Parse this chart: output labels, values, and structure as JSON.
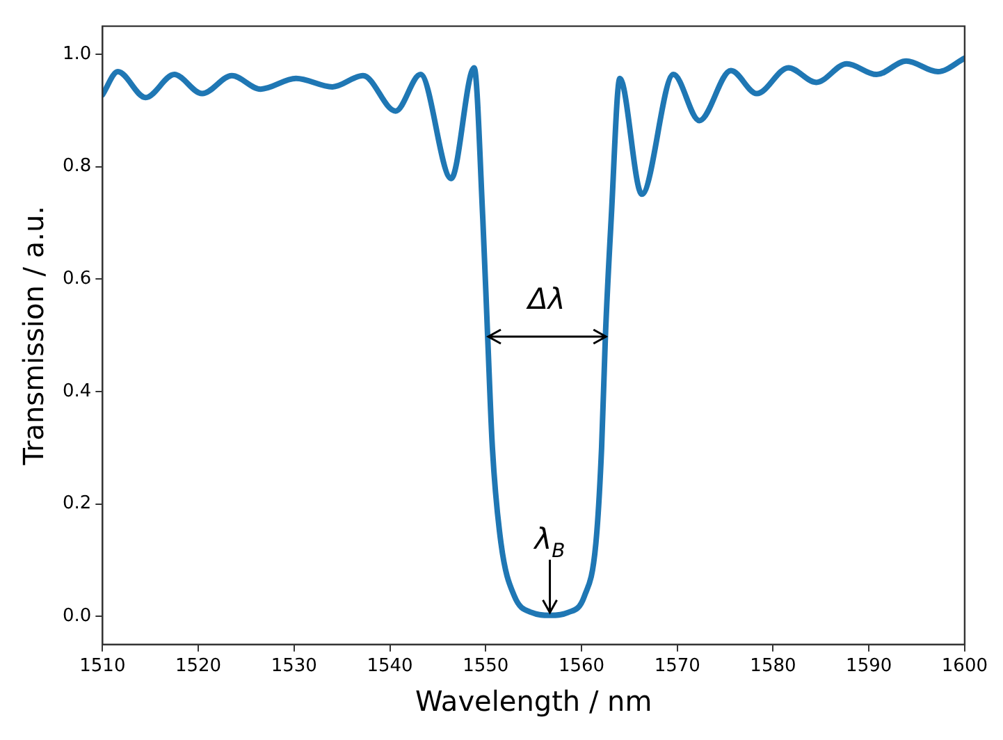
{
  "chart_data": {
    "type": "line",
    "xlabel": "Wavelength / nm",
    "ylabel": "Transmission / a.u.",
    "x": [
      1510,
      1511.6,
      1514.5,
      1517.5,
      1520.4,
      1523.5,
      1526.5,
      1530.2,
      1534,
      1537.2,
      1540.6,
      1543.2,
      1546.4,
      1548.8,
      1549.7,
      1550.2,
      1550.7,
      1551.6,
      1553,
      1554.8,
      1556.7,
      1558.6,
      1560.3,
      1561.5,
      1562.1,
      1562.5,
      1563.1,
      1564,
      1566.3,
      1569.6,
      1572.3,
      1575.6,
      1578.3,
      1581.6,
      1584.5,
      1587.7,
      1590.8,
      1593.9,
      1597.2,
      1600
    ],
    "series": [
      {
        "color": "#1f77b4",
        "values": [
          0.928,
          0.969,
          0.923,
          0.964,
          0.93,
          0.962,
          0.938,
          0.957,
          0.942,
          0.962,
          0.899,
          0.964,
          0.779,
          0.976,
          0.707,
          0.5,
          0.3,
          0.13,
          0.036,
          0.007,
          0.002,
          0.007,
          0.036,
          0.13,
          0.3,
          0.5,
          0.707,
          0.957,
          0.751,
          0.964,
          0.882,
          0.971,
          0.93,
          0.976,
          0.95,
          0.983,
          0.964,
          0.988,
          0.969,
          0.993
        ]
      }
    ],
    "xlim": [
      1510,
      1600
    ],
    "xticks": [
      1510,
      1520,
      1530,
      1540,
      1550,
      1560,
      1570,
      1580,
      1590,
      1600
    ],
    "ylim": [
      -0.05,
      1.05
    ],
    "yticks": [
      {
        "value": 0,
        "label": "0.0"
      },
      {
        "value": 0.2,
        "label": "0.2"
      },
      {
        "value": 0.4,
        "label": "0.4"
      },
      {
        "value": 0.6,
        "label": "0.6"
      },
      {
        "value": 0.8,
        "label": "0.8"
      },
      {
        "value": 1,
        "label": "1.0"
      }
    ],
    "grid": false,
    "legend": false,
    "marker": "none",
    "line_style": "solid",
    "annotations": [
      "Δλ",
      {
        "text": "λ$_{B}$",
        "x": 1556.7,
        "y": 0.002
      }
    ]
  }
}
